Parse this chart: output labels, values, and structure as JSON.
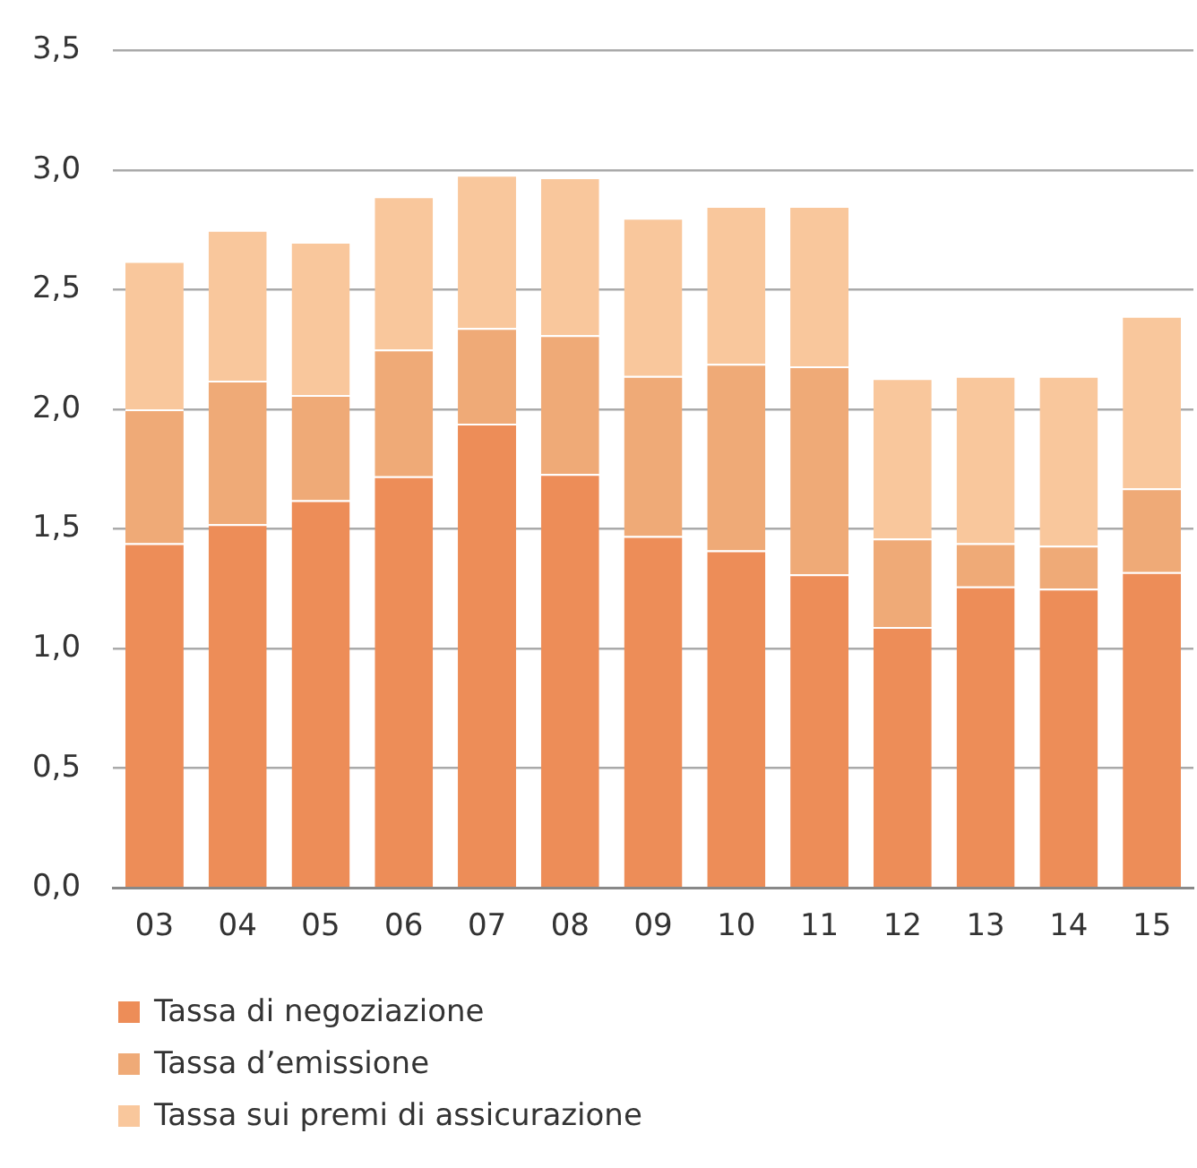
{
  "chart_data": {
    "type": "bar",
    "stacked": true,
    "categories": [
      "03",
      "04",
      "05",
      "06",
      "07",
      "08",
      "09",
      "10",
      "11",
      "12",
      "13",
      "14",
      "15"
    ],
    "series": [
      {
        "name": "Tassa di negoziazione",
        "color": "#ed8d58",
        "values": [
          1.44,
          1.52,
          1.62,
          1.72,
          1.94,
          1.73,
          1.47,
          1.41,
          1.31,
          1.09,
          1.26,
          1.25,
          1.32
        ]
      },
      {
        "name": "Tassa d’emissione",
        "color": "#efaa77",
        "values": [
          0.56,
          0.6,
          0.44,
          0.53,
          0.4,
          0.58,
          0.67,
          0.78,
          0.87,
          0.37,
          0.18,
          0.18,
          0.35
        ]
      },
      {
        "name": "Tassa sui premi di assicurazione",
        "color": "#f9c79c",
        "values": [
          0.62,
          0.63,
          0.64,
          0.64,
          0.64,
          0.66,
          0.66,
          0.66,
          0.67,
          0.67,
          0.7,
          0.71,
          0.72
        ]
      }
    ],
    "ylim": [
      0,
      3.5
    ],
    "yticks": [
      {
        "value": 0,
        "label": "0,0"
      },
      {
        "value": 0.5,
        "label": "0,5"
      },
      {
        "value": 1,
        "label": "1,0"
      },
      {
        "value": 1.5,
        "label": "1,5"
      },
      {
        "value": 2,
        "label": "2,0"
      },
      {
        "value": 2.5,
        "label": "2,5"
      },
      {
        "value": 3,
        "label": "3,0"
      },
      {
        "value": 3.5,
        "label": "3,5"
      }
    ],
    "grid": "y",
    "legend": "bottom left"
  }
}
